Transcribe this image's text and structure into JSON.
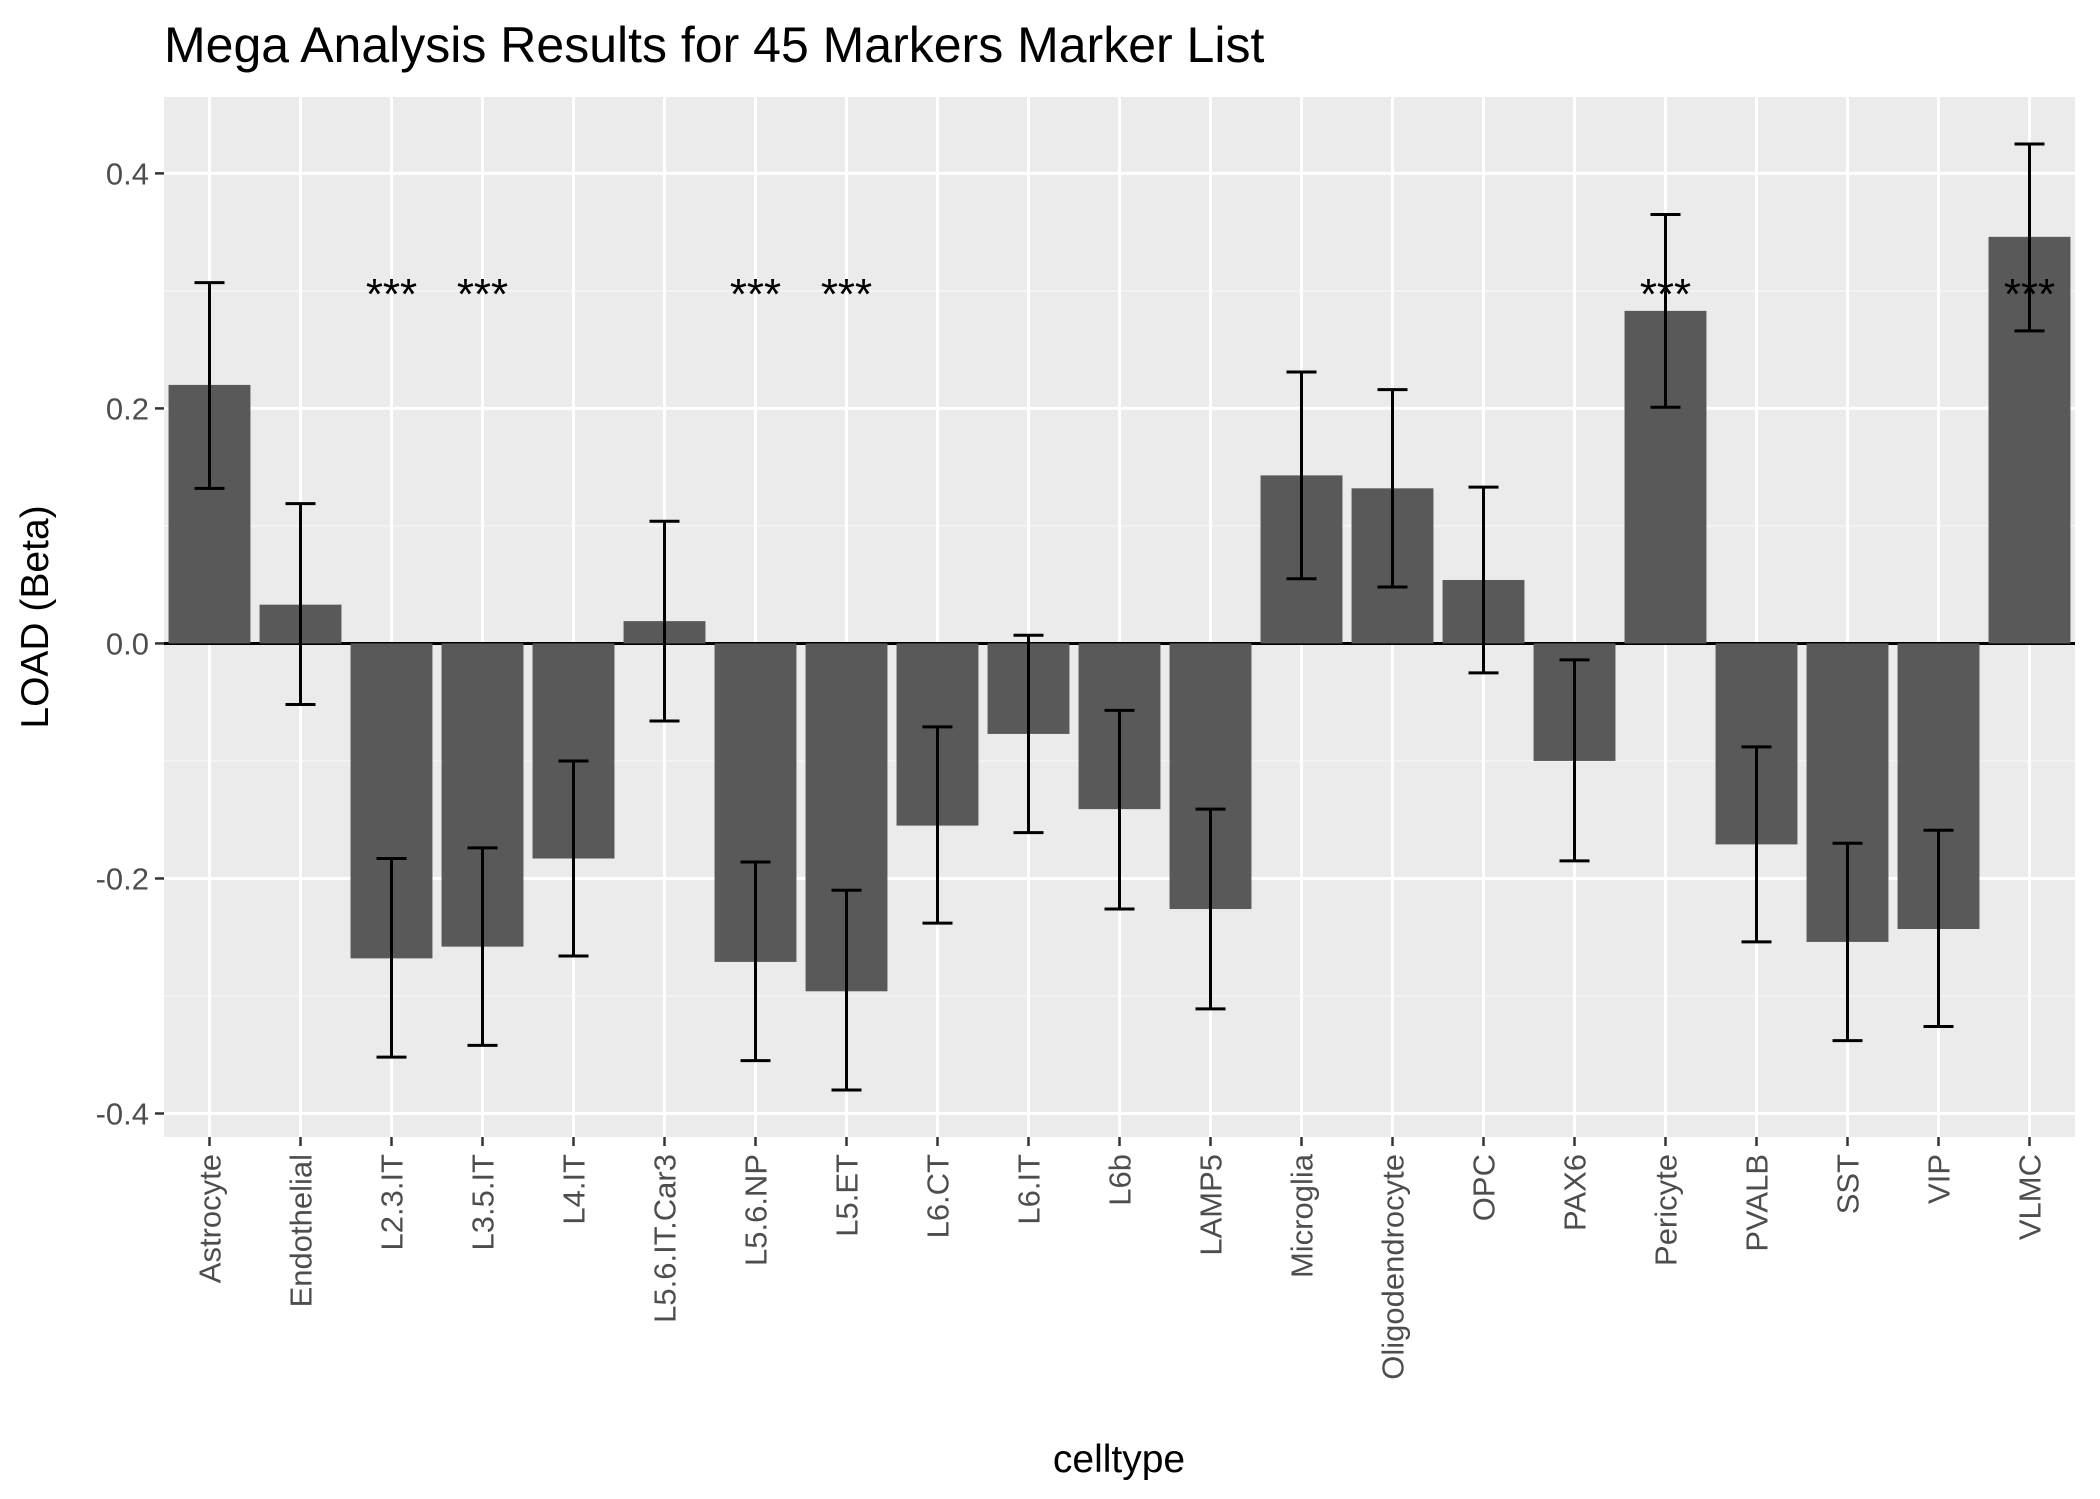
{
  "chart_data": {
    "type": "bar",
    "title": "Mega Analysis Results for 45 Markers Marker List",
    "xlabel": "celltype",
    "ylabel": "LOAD (Beta)",
    "ylim": [
      -0.42,
      0.465
    ],
    "yticks": [
      -0.4,
      -0.2,
      0.0,
      0.2,
      0.4
    ],
    "ytick_labels": [
      "-0.4",
      "-0.2",
      "0.0",
      "0.2",
      "0.4"
    ],
    "categories": [
      "Astrocyte",
      "Endothelial",
      "L2.3.IT",
      "L3.5.IT",
      "L4.IT",
      "L5.6.IT.Car3",
      "L5.6.NP",
      "L5.ET",
      "L6.CT",
      "L6.IT",
      "L6b",
      "LAMP5",
      "Microglia",
      "Oligodendrocyte",
      "OPC",
      "PAX6",
      "Pericyte",
      "PVALB",
      "SST",
      "VIP",
      "VLMC"
    ],
    "values": [
      0.22,
      0.033,
      -0.268,
      -0.258,
      -0.183,
      0.019,
      -0.271,
      -0.296,
      -0.155,
      -0.077,
      -0.141,
      -0.226,
      0.143,
      0.132,
      0.054,
      -0.1,
      0.283,
      -0.171,
      -0.254,
      -0.243,
      0.346
    ],
    "error_low": [
      0.132,
      -0.052,
      -0.352,
      -0.342,
      -0.266,
      -0.066,
      -0.355,
      -0.38,
      -0.238,
      -0.161,
      -0.226,
      -0.311,
      0.055,
      0.048,
      -0.025,
      -0.185,
      0.201,
      -0.254,
      -0.338,
      -0.326,
      0.266
    ],
    "error_high": [
      0.307,
      0.119,
      -0.183,
      -0.174,
      -0.1,
      0.104,
      -0.186,
      -0.21,
      -0.071,
      0.007,
      -0.057,
      -0.141,
      0.231,
      0.216,
      0.133,
      -0.014,
      0.365,
      -0.088,
      -0.17,
      -0.159,
      0.425
    ],
    "significance": [
      "",
      "",
      "***",
      "***",
      "",
      "",
      "***",
      "***",
      "",
      "",
      "",
      "",
      "",
      "",
      "",
      "",
      "***",
      "",
      "",
      "",
      "***"
    ],
    "significance_y": 0.3,
    "grid": true,
    "colors": {
      "panel_background": "#ebebeb",
      "grid_major": "#ffffff",
      "grid_minor": "#f5f5f5",
      "bar": "#595959",
      "errorbar": "#000000",
      "zero_line": "#000000",
      "tick": "#333333"
    }
  }
}
